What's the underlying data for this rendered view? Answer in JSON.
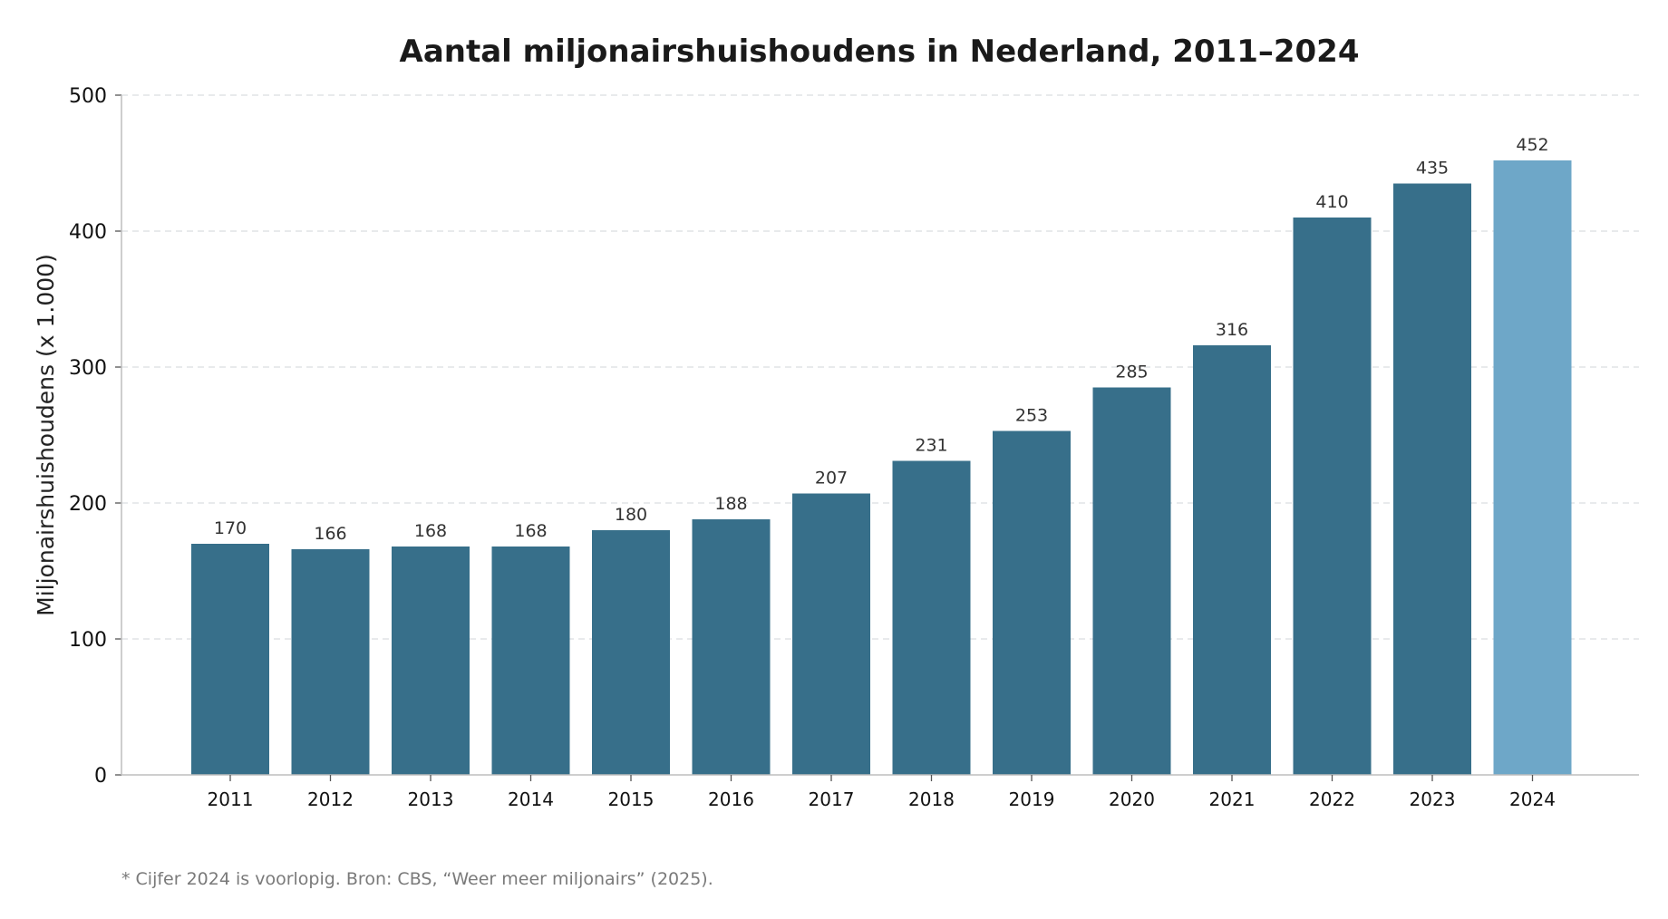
{
  "chart_data": {
    "type": "bar",
    "title": "Aantal miljonairshuishoudens in Nederland, 2011–2024",
    "ylabel": "Miljonairshuishoudens (x 1.000)",
    "xlabel": "",
    "categories": [
      "2011",
      "2012",
      "2013",
      "2014",
      "2015",
      "2016",
      "2017",
      "2018",
      "2019",
      "2020",
      "2021",
      "2022",
      "2023",
      "2024"
    ],
    "values": [
      170,
      166,
      168,
      168,
      180,
      188,
      207,
      231,
      253,
      285,
      316,
      410,
      435,
      452
    ],
    "data_labels": [
      "170",
      "166",
      "168",
      "168",
      "180",
      "188",
      "207",
      "231",
      "253",
      "285",
      "316",
      "410",
      "435",
      "452"
    ],
    "ylim": [
      0,
      500
    ],
    "yticks": [
      0,
      100,
      200,
      300,
      400,
      500
    ],
    "grid": true,
    "bar_color": "#376f8a",
    "highlight_color": "#6ea7c8",
    "highlight_categories": [
      "2024"
    ],
    "footnote": "* Cijfer 2024 is voorlopig.  Bron: CBS, “Weer meer miljonairs” (2025)."
  }
}
